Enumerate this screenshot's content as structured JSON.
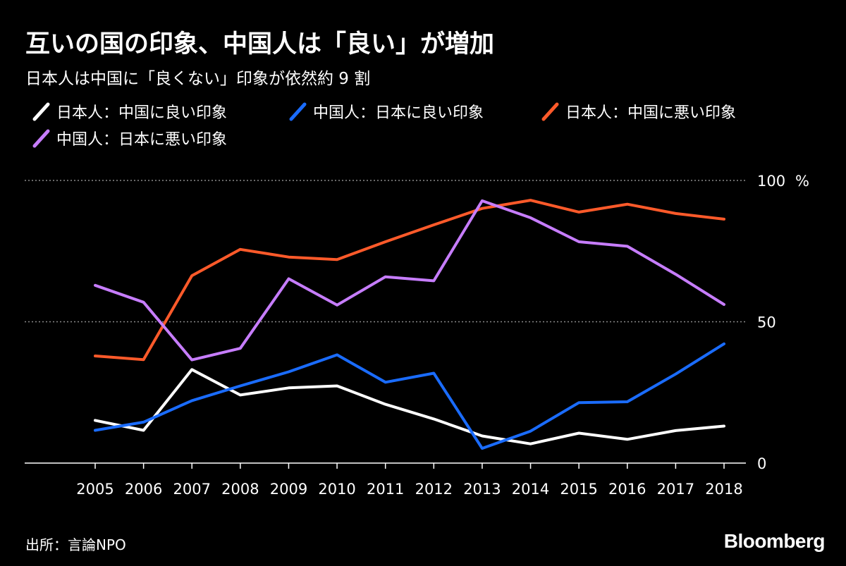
{
  "header": {
    "title": "互いの国の印象、中国人は「良い」が増加",
    "subtitle": "日本人は中国に「良くない」印象が依然約 9 割"
  },
  "footer": {
    "source": "出所：言論NPO",
    "brand": "Bloomberg"
  },
  "chart_data": {
    "type": "line",
    "title": "互いの国の印象、中国人は「良い」が増加",
    "subtitle": "日本人は中国に「良くない」印象が依然約 9 割",
    "ylabel": "%",
    "ylim": [
      0,
      100
    ],
    "yticks": [
      {
        "value": 0,
        "label": "0"
      },
      {
        "value": 50,
        "label": "50"
      },
      {
        "value": 100,
        "label": "100"
      }
    ],
    "y_unit": "%",
    "grid": true,
    "legend_position": "top",
    "categories": [
      "2005",
      "2006",
      "2007",
      "2008",
      "2009",
      "2010",
      "2011",
      "2012",
      "2013",
      "2014",
      "2015",
      "2016",
      "2017",
      "2018"
    ],
    "series": [
      {
        "name": "日本人：中国に良い印象",
        "color": "#ffffff",
        "values": [
          15.1,
          11.6,
          33.1,
          24.1,
          26.6,
          27.3,
          20.8,
          15.6,
          9.6,
          6.8,
          10.6,
          8.4,
          11.5,
          13.1
        ]
      },
      {
        "name": "中国人：日本に良い印象",
        "color": "#1a6cff",
        "values": [
          11.6,
          14.5,
          22.1,
          27.3,
          32.3,
          38.3,
          28.6,
          31.8,
          5.2,
          11.3,
          21.4,
          21.7,
          31.5,
          42.2
        ]
      },
      {
        "name": "日本人：中国に悪い印象",
        "color": "#ff5a2a",
        "values": [
          37.9,
          36.6,
          66.3,
          75.6,
          72.9,
          72.0,
          78.3,
          84.3,
          90.1,
          93.0,
          88.8,
          91.6,
          88.3,
          86.3
        ]
      },
      {
        "name": "中国人：日本に悪い印象",
        "color": "#c77dff",
        "values": [
          62.9,
          56.9,
          36.5,
          40.6,
          65.2,
          55.9,
          65.9,
          64.5,
          92.8,
          86.8,
          78.3,
          76.7,
          66.8,
          56.1
        ]
      }
    ]
  }
}
